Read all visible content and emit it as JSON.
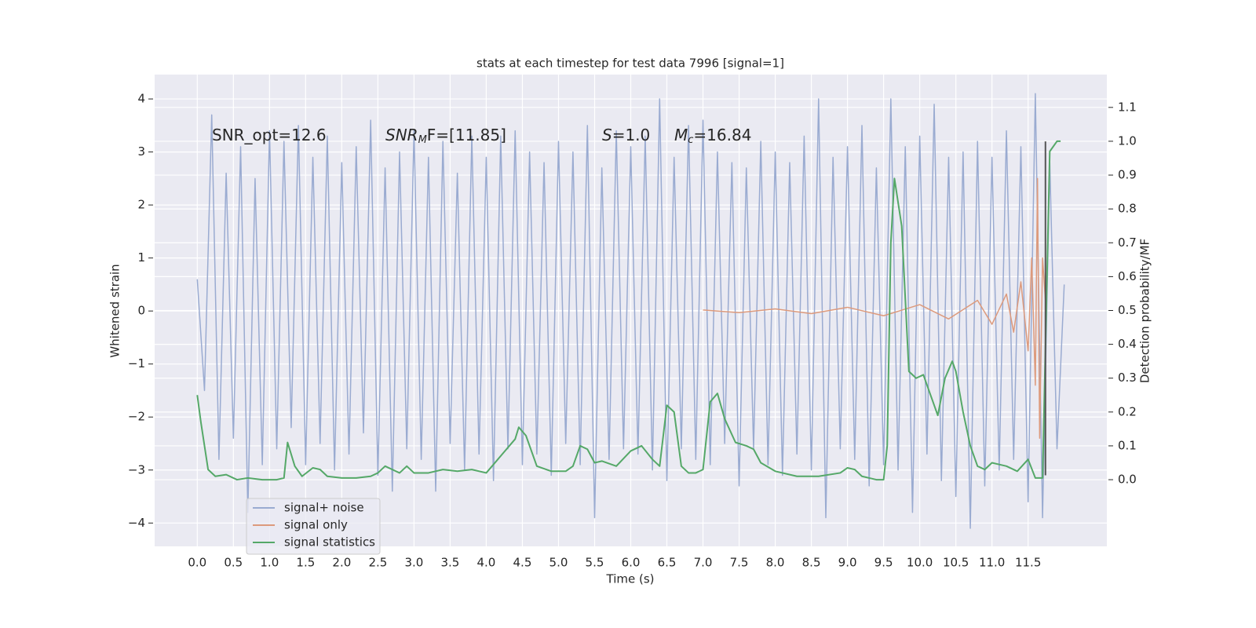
{
  "chart_data": {
    "type": "line",
    "title": "stats at each timestep for test data 7996 [signal=1]",
    "xlabel": "Time (s)",
    "ylabel": "Whitened strain",
    "y2label": "Detection probability/MF",
    "annotations": [
      {
        "main": "SNR_opt=12.6"
      },
      {
        "main": "SNR",
        "sub": "M",
        "tail": "F=[11.85]"
      },
      {
        "main": "S",
        "tail": "=1.0"
      },
      {
        "main": "M",
        "sub": "c",
        "tail": "=16.84"
      }
    ],
    "xlim": [
      -0.59,
      12.59
    ],
    "ylim": [
      -4.44,
      4.46
    ],
    "y2lim": [
      -0.197,
      1.197
    ],
    "xticks": [
      {
        "value": 0,
        "label": "0.0"
      },
      0.5,
      {
        "value": 1,
        "label": "1.0"
      },
      1.5,
      {
        "value": 2,
        "label": "2.0"
      },
      2.5,
      {
        "value": 3,
        "label": "3.0"
      },
      3.5,
      {
        "value": 4,
        "label": "4.0"
      },
      4.5,
      {
        "value": 5,
        "label": "5.0"
      },
      5.5,
      {
        "value": 6,
        "label": "6.0"
      },
      6.5,
      {
        "value": 7,
        "label": "7.0"
      },
      7.5,
      {
        "value": 8,
        "label": "8.0"
      },
      8.5,
      {
        "value": 9,
        "label": "9.0"
      },
      9.5,
      {
        "value": 10,
        "label": "10.0"
      },
      10.5,
      {
        "value": 11,
        "label": "11.0"
      },
      11.5
    ],
    "yticks": [
      {
        "value": -4,
        "label": "−4"
      },
      {
        "value": -3,
        "label": "−3"
      },
      {
        "value": -2,
        "label": "−2"
      },
      {
        "value": -1,
        "label": "−1"
      },
      0,
      1,
      2,
      3,
      4
    ],
    "y2ticks": [
      {
        "value": 0,
        "label": "0.0"
      },
      0.1,
      0.2,
      0.3,
      0.4,
      0.5,
      0.6,
      0.7,
      0.8,
      0.9,
      {
        "value": 1,
        "label": "1.0"
      },
      1.1
    ],
    "grid": true,
    "legend": "lower left",
    "series": [
      {
        "name": "signal+ noise",
        "color": "#9aabd1",
        "x": [
          0.0,
          0.1,
          0.2,
          0.3,
          0.4,
          0.5,
          0.6,
          0.7,
          0.8,
          0.9,
          1.0,
          1.1,
          1.2,
          1.3,
          1.4,
          1.5,
          1.6,
          1.7,
          1.8,
          1.9,
          2.0,
          2.1,
          2.2,
          2.3,
          2.4,
          2.5,
          2.6,
          2.7,
          2.8,
          2.9,
          3.0,
          3.1,
          3.2,
          3.3,
          3.4,
          3.5,
          3.6,
          3.7,
          3.8,
          3.9,
          4.0,
          4.1,
          4.2,
          4.3,
          4.4,
          4.5,
          4.6,
          4.7,
          4.8,
          4.9,
          5.0,
          5.1,
          5.2,
          5.3,
          5.4,
          5.5,
          5.6,
          5.7,
          5.8,
          5.9,
          6.0,
          6.1,
          6.2,
          6.3,
          6.4,
          6.5,
          6.6,
          6.7,
          6.8,
          6.9,
          7.0,
          7.1,
          7.2,
          7.3,
          7.4,
          7.5,
          7.6,
          7.7,
          7.8,
          7.9,
          8.0,
          8.1,
          8.2,
          8.3,
          8.4,
          8.5,
          8.6,
          8.7,
          8.8,
          8.9,
          9.0,
          9.1,
          9.2,
          9.3,
          9.4,
          9.5,
          9.6,
          9.7,
          9.8,
          9.9,
          10.0,
          10.1,
          10.2,
          10.3,
          10.4,
          10.5,
          10.6,
          10.7,
          10.8,
          10.9,
          11.0,
          11.1,
          11.2,
          11.3,
          11.4,
          11.5,
          11.6,
          11.7,
          11.8,
          11.9,
          12.0
        ],
        "values": [
          0.6,
          -1.5,
          3.7,
          -2.8,
          2.6,
          -2.4,
          3.1,
          -3.8,
          2.5,
          -2.9,
          3.4,
          -2.6,
          3.2,
          -2.2,
          3.5,
          -2.9,
          2.9,
          -2.5,
          3.3,
          -3.0,
          2.8,
          -2.7,
          3.1,
          -2.3,
          3.6,
          -3.1,
          2.7,
          -3.4,
          3.0,
          -2.6,
          3.4,
          -2.8,
          2.9,
          -3.4,
          3.2,
          -2.5,
          2.6,
          -3.0,
          3.3,
          -2.7,
          2.9,
          -3.2,
          3.3,
          -2.6,
          3.4,
          -2.9,
          3.0,
          -2.7,
          2.8,
          -3.1,
          3.2,
          -2.5,
          3.0,
          -2.9,
          3.5,
          -3.9,
          2.7,
          -2.8,
          3.4,
          -2.6,
          3.1,
          -2.7,
          3.3,
          -3.0,
          4.0,
          -3.2,
          2.9,
          -2.6,
          3.5,
          -2.8,
          3.6,
          -2.9,
          3.0,
          -2.5,
          2.8,
          -3.3,
          2.7,
          -2.6,
          3.2,
          -2.9,
          3.0,
          -3.1,
          2.8,
          -2.7,
          3.3,
          -3.0,
          4.0,
          -3.9,
          2.9,
          -2.6,
          3.1,
          -2.8,
          3.5,
          -3.3,
          2.7,
          -2.9,
          4.0,
          -3.0,
          3.1,
          -3.8,
          3.3,
          -2.7,
          3.9,
          -3.2,
          2.9,
          -3.5,
          3.0,
          -4.1,
          3.2,
          -3.3,
          2.9,
          -3.0,
          3.4,
          -2.8,
          3.1,
          -3.6,
          4.1,
          -3.9,
          2.8,
          -2.6,
          0.5
        ]
      },
      {
        "name": "signal only",
        "color": "#dd9a7c",
        "x": [
          7.0,
          7.5,
          8.0,
          8.5,
          9.0,
          9.5,
          10.0,
          10.4,
          10.8,
          11.0,
          11.2,
          11.3,
          11.4,
          11.5,
          11.55,
          11.6,
          11.63,
          11.66,
          11.7,
          11.75
        ],
        "values": [
          0.02,
          -0.03,
          0.04,
          -0.05,
          0.07,
          -0.09,
          0.12,
          -0.15,
          0.2,
          -0.25,
          0.32,
          -0.4,
          0.55,
          -0.75,
          1.0,
          -1.4,
          2.5,
          -2.4,
          1.0,
          0.0
        ]
      },
      {
        "name": "signal statistics",
        "color": "#55a868",
        "axis": "y2",
        "x": [
          0.0,
          0.05,
          0.15,
          0.25,
          0.4,
          0.55,
          0.7,
          0.9,
          1.1,
          1.2,
          1.25,
          1.35,
          1.45,
          1.6,
          1.7,
          1.8,
          2.0,
          2.2,
          2.4,
          2.5,
          2.6,
          2.8,
          2.9,
          3.0,
          3.2,
          3.4,
          3.6,
          3.8,
          4.0,
          4.2,
          4.4,
          4.45,
          4.55,
          4.7,
          4.9,
          5.1,
          5.2,
          5.3,
          5.4,
          5.5,
          5.6,
          5.8,
          6.0,
          6.15,
          6.3,
          6.4,
          6.5,
          6.6,
          6.7,
          6.8,
          6.9,
          7.0,
          7.1,
          7.2,
          7.3,
          7.45,
          7.6,
          7.7,
          7.8,
          8.0,
          8.3,
          8.6,
          8.9,
          9.0,
          9.1,
          9.2,
          9.4,
          9.5,
          9.55,
          9.6,
          9.65,
          9.75,
          9.85,
          9.95,
          10.05,
          10.15,
          10.25,
          10.35,
          10.45,
          10.5,
          10.6,
          10.7,
          10.8,
          10.9,
          11.0,
          11.2,
          11.35,
          11.5,
          11.6,
          11.7,
          11.8,
          11.9,
          11.95
        ],
        "values": [
          0.25,
          0.17,
          0.03,
          0.01,
          0.015,
          0.0,
          0.005,
          0.0,
          0.0,
          0.005,
          0.11,
          0.04,
          0.01,
          0.035,
          0.03,
          0.01,
          0.005,
          0.005,
          0.01,
          0.02,
          0.04,
          0.02,
          0.04,
          0.02,
          0.02,
          0.03,
          0.025,
          0.03,
          0.02,
          0.07,
          0.12,
          0.155,
          0.13,
          0.04,
          0.025,
          0.025,
          0.04,
          0.1,
          0.09,
          0.05,
          0.055,
          0.04,
          0.085,
          0.1,
          0.06,
          0.04,
          0.22,
          0.2,
          0.04,
          0.02,
          0.02,
          0.03,
          0.23,
          0.255,
          0.18,
          0.11,
          0.1,
          0.09,
          0.05,
          0.025,
          0.01,
          0.01,
          0.02,
          0.035,
          0.03,
          0.01,
          0.0,
          0.0,
          0.1,
          0.7,
          0.89,
          0.75,
          0.32,
          0.3,
          0.31,
          0.25,
          0.19,
          0.3,
          0.35,
          0.32,
          0.2,
          0.1,
          0.04,
          0.03,
          0.05,
          0.04,
          0.025,
          0.06,
          0.005,
          0.005,
          0.97,
          1.0,
          1.0
        ]
      }
    ],
    "vline": {
      "x": 11.74,
      "ymin": -3.1,
      "ymax": 3.2,
      "color": "#555555"
    }
  }
}
